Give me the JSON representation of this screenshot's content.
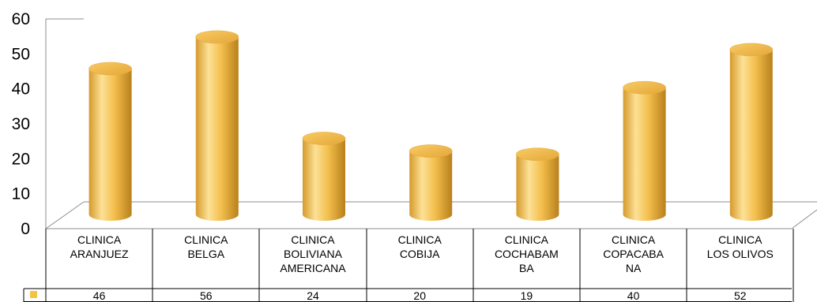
{
  "chart_data": {
    "type": "bar",
    "style": "3d-cylinder",
    "categories": [
      [
        "CLINICA",
        "ARANJUEZ"
      ],
      [
        "CLINICA",
        "BELGA"
      ],
      [
        "CLINICA",
        "BOLIVIANA",
        "AMERICANA"
      ],
      [
        "CLINICA",
        "COBIJA"
      ],
      [
        "CLINICA",
        "COCHABAM",
        "BA"
      ],
      [
        "CLINICA",
        "COPACABA",
        "NA"
      ],
      [
        "CLINICA",
        "LOS OLIVOS"
      ]
    ],
    "values": [
      46,
      56,
      24,
      20,
      19,
      40,
      52
    ],
    "yticks": [
      0,
      10,
      20,
      30,
      40,
      50,
      60
    ],
    "ylim": [
      0,
      60
    ],
    "grid": false,
    "data_table": true,
    "colors": {
      "bar_light": "#FCE196",
      "bar_mid": "#F3BE4C",
      "bar_dark": "#C98F22",
      "legend_key": "#F5C242",
      "axis": "#8c8c8c"
    }
  }
}
